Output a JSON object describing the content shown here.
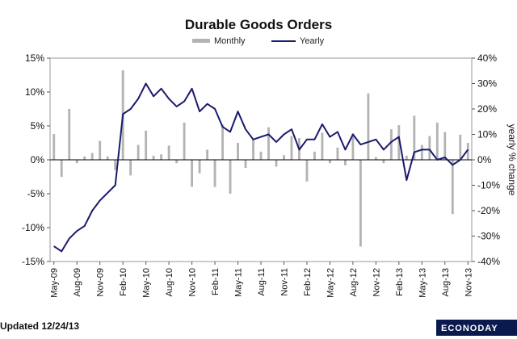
{
  "chart_data": {
    "type": "bar+line",
    "title": "Durable Goods  Orders",
    "legend": {
      "placement": "top-center",
      "entries": [
        "Monthly",
        "Yearly"
      ]
    },
    "y_left": {
      "ticks": [
        "15%",
        "10%",
        "5%",
        "0%",
        "-5%",
        "-10%",
        "-15%"
      ],
      "range": [
        -15,
        15
      ]
    },
    "y_right": {
      "label": "yearly % change",
      "ticks": [
        "40%",
        "30%",
        "20%",
        "10%",
        "0%",
        "-10%",
        "-20%",
        "-30%",
        "-40%"
      ],
      "range": [
        -40,
        40
      ]
    },
    "x_tick_labels": [
      "May-09",
      "Aug-09",
      "Nov-09",
      "Feb-10",
      "May-10",
      "Aug-10",
      "Nov-10",
      "Feb-11",
      "May-11",
      "Aug-11",
      "Nov-11",
      "Feb-12",
      "May-12",
      "Aug-12",
      "Nov-12",
      "Feb-13",
      "May-13",
      "Aug-13",
      "Nov-13"
    ],
    "months": [
      "May-09",
      "Jun-09",
      "Jul-09",
      "Aug-09",
      "Sep-09",
      "Oct-09",
      "Nov-09",
      "Dec-09",
      "Jan-10",
      "Feb-10",
      "Mar-10",
      "Apr-10",
      "May-10",
      "Jun-10",
      "Jul-10",
      "Aug-10",
      "Sep-10",
      "Oct-10",
      "Nov-10",
      "Dec-10",
      "Jan-11",
      "Feb-11",
      "Mar-11",
      "Apr-11",
      "May-11",
      "Jun-11",
      "Jul-11",
      "Aug-11",
      "Sep-11",
      "Oct-11",
      "Nov-11",
      "Dec-11",
      "Jan-12",
      "Feb-12",
      "Mar-12",
      "Apr-12",
      "May-12",
      "Jun-12",
      "Jul-12",
      "Aug-12",
      "Sep-12",
      "Oct-12",
      "Nov-12",
      "Dec-12",
      "Jan-13",
      "Feb-13",
      "Mar-13",
      "Apr-13",
      "May-13",
      "Jun-13",
      "Jul-13",
      "Aug-13",
      "Sep-13",
      "Oct-13",
      "Nov-13"
    ],
    "series": [
      {
        "name": "Monthly",
        "axis": "left",
        "color": "#b3b3b3",
        "values": [
          3.8,
          -2.5,
          7.5,
          -0.5,
          0.5,
          1.0,
          2.8,
          0.5,
          -1.5,
          13.2,
          -2.3,
          2.2,
          4.3,
          0.6,
          0.8,
          2.1,
          -0.5,
          5.5,
          -4.0,
          -2.0,
          1.5,
          -4.0,
          5.2,
          -5.0,
          2.5,
          -1.2,
          3.0,
          1.2,
          4.8,
          -1.0,
          0.7,
          3.5,
          3.2,
          -3.2,
          1.2,
          4.0,
          -0.5,
          1.8,
          -0.8,
          3.9,
          -12.8,
          9.8,
          0.4,
          -0.5,
          4.5,
          5.1,
          0.6,
          6.5,
          2.2,
          3.5,
          5.5,
          4.1,
          -8.0,
          3.7,
          2.5
        ]
      },
      {
        "name": "Yearly",
        "axis": "right",
        "color": "#1a1a6e",
        "values": [
          -34,
          -36,
          -31,
          -28,
          -26,
          -20,
          -16,
          -13,
          -10,
          18,
          20,
          24,
          30,
          25,
          28,
          24,
          21,
          23,
          28,
          19,
          22,
          20,
          13,
          11,
          19,
          12,
          8,
          9,
          10,
          7,
          10,
          12,
          4,
          8,
          8,
          14,
          9,
          11,
          4,
          10,
          6,
          7,
          8,
          4,
          7,
          9,
          -8,
          3,
          4,
          4,
          0,
          1,
          -2,
          0,
          4
        ]
      }
    ]
  },
  "footer": {
    "updated": "Updated 12/24/13",
    "brand": "ECONODAY"
  }
}
